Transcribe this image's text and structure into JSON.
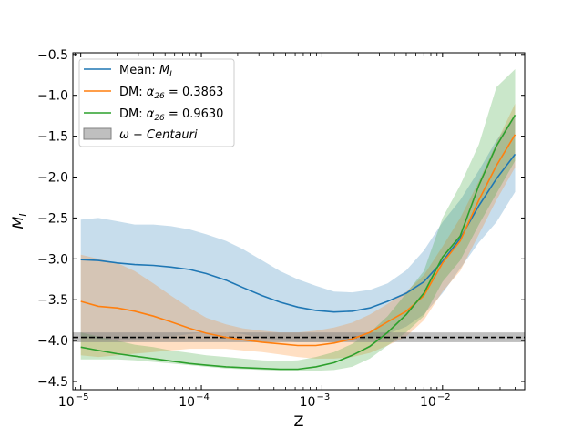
{
  "chart_data": {
    "type": "line",
    "x_scale": "log",
    "y_scale": "linear",
    "xlim": [
      8.6e-06,
      0.048
    ],
    "ylim": [
      -4.6,
      -0.48
    ],
    "xlabel": "Z",
    "ylabel": "M_I",
    "x_ticks": [
      {
        "value": 1e-05,
        "label": "10",
        "exp": "−5"
      },
      {
        "value": 0.0001,
        "label": "10",
        "exp": "−4"
      },
      {
        "value": 0.001,
        "label": "10",
        "exp": "−3"
      },
      {
        "value": 0.01,
        "label": "10",
        "exp": "−2"
      }
    ],
    "y_ticks": [
      {
        "value": -0.5,
        "label": "−0.5"
      },
      {
        "value": -1.0,
        "label": "−1.0"
      },
      {
        "value": -1.5,
        "label": "−1.5"
      },
      {
        "value": -2.0,
        "label": "−2.0"
      },
      {
        "value": -2.5,
        "label": "−2.5"
      },
      {
        "value": -3.0,
        "label": "−3.0"
      },
      {
        "value": -3.5,
        "label": "−3.5"
      },
      {
        "value": -4.0,
        "label": "−4.0"
      },
      {
        "value": -4.5,
        "label": "−4.5"
      }
    ],
    "series": [
      {
        "name": "Mean",
        "legend_label": "Mean: ",
        "legend_math": "M",
        "legend_sub": "I",
        "color": "#1f77b4",
        "band_alpha": 0.25,
        "x": [
          1e-05,
          1.4e-05,
          2e-05,
          2.8e-05,
          4e-05,
          5.6e-05,
          8e-05,
          0.00011,
          0.00016,
          0.00022,
          0.00032,
          0.00045,
          0.00063,
          0.00089,
          0.00126,
          0.00178,
          0.0025,
          0.0035,
          0.005,
          0.007,
          0.01,
          0.014,
          0.02,
          0.028,
          0.04
        ],
        "y": [
          -3.01,
          -3.02,
          -3.05,
          -3.07,
          -3.08,
          -3.1,
          -3.13,
          -3.18,
          -3.26,
          -3.35,
          -3.45,
          -3.53,
          -3.59,
          -3.63,
          -3.65,
          -3.64,
          -3.6,
          -3.52,
          -3.42,
          -3.28,
          -3.03,
          -2.75,
          -2.35,
          -2.02,
          -1.72
        ],
        "lower": [
          -3.95,
          -3.98,
          -4.0,
          -4.0,
          -3.98,
          -3.95,
          -3.92,
          -3.9,
          -3.9,
          -3.92,
          -3.97,
          -4.0,
          -4.02,
          -4.02,
          -4.02,
          -4.0,
          -3.98,
          -3.92,
          -3.83,
          -3.68,
          -3.42,
          -3.12,
          -2.8,
          -2.55,
          -2.18
        ],
        "upper": [
          -2.52,
          -2.5,
          -2.54,
          -2.58,
          -2.58,
          -2.6,
          -2.64,
          -2.7,
          -2.78,
          -2.88,
          -3.02,
          -3.15,
          -3.25,
          -3.33,
          -3.4,
          -3.41,
          -3.38,
          -3.3,
          -3.14,
          -2.9,
          -2.55,
          -2.28,
          -1.92,
          -1.55,
          -1.24
        ]
      },
      {
        "name": "DM alpha 0.3863",
        "legend_label": "DM: ",
        "legend_math": "α",
        "legend_sub": "26",
        "legend_value": " = 0.3863",
        "color": "#ff7f0e",
        "band_alpha": 0.25,
        "x": [
          1e-05,
          1.4e-05,
          2e-05,
          2.8e-05,
          4e-05,
          5.6e-05,
          8e-05,
          0.00011,
          0.00016,
          0.00022,
          0.00032,
          0.00045,
          0.00063,
          0.00089,
          0.00126,
          0.00178,
          0.0025,
          0.0035,
          0.005,
          0.007,
          0.01,
          0.014,
          0.02,
          0.028,
          0.04
        ],
        "y": [
          -3.52,
          -3.58,
          -3.6,
          -3.64,
          -3.7,
          -3.77,
          -3.85,
          -3.91,
          -3.96,
          -3.99,
          -4.02,
          -4.04,
          -4.06,
          -4.06,
          -4.03,
          -3.98,
          -3.9,
          -3.77,
          -3.64,
          -3.45,
          -3.05,
          -2.78,
          -2.28,
          -1.86,
          -1.48
        ],
        "lower": [
          -4.18,
          -4.2,
          -4.18,
          -4.16,
          -4.14,
          -4.12,
          -4.1,
          -4.1,
          -4.1,
          -4.12,
          -4.14,
          -4.17,
          -4.2,
          -4.22,
          -4.22,
          -4.2,
          -4.15,
          -4.06,
          -3.95,
          -3.75,
          -3.4,
          -3.15,
          -2.7,
          -2.28,
          -1.88
        ],
        "upper": [
          -2.95,
          -3.0,
          -3.05,
          -3.15,
          -3.3,
          -3.45,
          -3.6,
          -3.72,
          -3.8,
          -3.85,
          -3.88,
          -3.9,
          -3.9,
          -3.88,
          -3.84,
          -3.78,
          -3.68,
          -3.55,
          -3.4,
          -3.2,
          -2.85,
          -2.5,
          -2.05,
          -1.58,
          -1.1
        ]
      },
      {
        "name": "DM alpha 0.9630",
        "legend_label": "DM: ",
        "legend_math": "α",
        "legend_sub": "26",
        "legend_value": " = 0.9630",
        "color": "#2ca02c",
        "band_alpha": 0.25,
        "x": [
          1e-05,
          1.4e-05,
          2e-05,
          2.8e-05,
          4e-05,
          5.6e-05,
          8e-05,
          0.00011,
          0.00016,
          0.00022,
          0.00032,
          0.00045,
          0.00063,
          0.00089,
          0.00126,
          0.00178,
          0.0025,
          0.0035,
          0.005,
          0.007,
          0.01,
          0.014,
          0.02,
          0.028,
          0.04
        ],
        "y": [
          -4.08,
          -4.12,
          -4.16,
          -4.19,
          -4.22,
          -4.25,
          -4.28,
          -4.3,
          -4.32,
          -4.33,
          -4.34,
          -4.35,
          -4.35,
          -4.32,
          -4.27,
          -4.18,
          -4.07,
          -3.9,
          -3.68,
          -3.42,
          -2.98,
          -2.72,
          -2.1,
          -1.62,
          -1.24
        ],
        "lower": [
          -4.23,
          -4.23,
          -4.23,
          -4.24,
          -4.26,
          -4.28,
          -4.3,
          -4.32,
          -4.34,
          -4.35,
          -4.36,
          -4.37,
          -4.37,
          -4.37,
          -4.36,
          -4.32,
          -4.22,
          -4.06,
          -3.9,
          -3.7,
          -3.28,
          -3.02,
          -2.58,
          -2.2,
          -1.8
        ],
        "upper": [
          -3.9,
          -3.95,
          -4.0,
          -4.05,
          -4.08,
          -4.12,
          -4.15,
          -4.18,
          -4.2,
          -4.22,
          -4.24,
          -4.25,
          -4.24,
          -4.2,
          -4.14,
          -4.04,
          -3.9,
          -3.7,
          -3.42,
          -3.15,
          -2.5,
          -2.1,
          -1.6,
          -0.9,
          -0.68
        ]
      }
    ],
    "reference": {
      "name": "omega Centauri",
      "legend_text": "ω − Centauri",
      "value": -3.96,
      "band": [
        -4.02,
        -3.9
      ],
      "line_color": "#000000",
      "band_color": "#808080",
      "band_alpha": 0.5,
      "line_style": "dashed"
    },
    "legend": {
      "position": "top-left"
    }
  }
}
